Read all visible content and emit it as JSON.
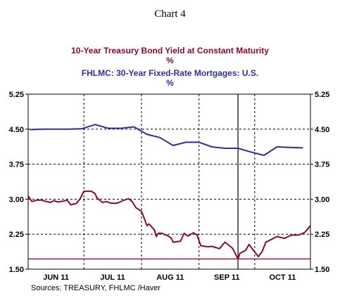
{
  "chart_data": {
    "type": "line",
    "title": "Chart 4",
    "series": [
      {
        "name": "10-Year Treasury Bond Yield at Constant Maturity",
        "unit": "%",
        "color": "#8b0a2a",
        "x": [
          "2011-06-01",
          "2011-06-03",
          "2011-06-06",
          "2011-06-08",
          "2011-06-10",
          "2011-06-13",
          "2011-06-15",
          "2011-06-17",
          "2011-06-20",
          "2011-06-22",
          "2011-06-24",
          "2011-06-27",
          "2011-06-29",
          "2011-07-01",
          "2011-07-05",
          "2011-07-07",
          "2011-07-08",
          "2011-07-11",
          "2011-07-13",
          "2011-07-15",
          "2011-07-18",
          "2011-07-20",
          "2011-07-22",
          "2011-07-25",
          "2011-07-27",
          "2011-07-29",
          "2011-08-01",
          "2011-08-02",
          "2011-08-04",
          "2011-08-05",
          "2011-08-08",
          "2011-08-09",
          "2011-08-10",
          "2011-08-12",
          "2011-08-15",
          "2011-08-17",
          "2011-08-18",
          "2011-08-22",
          "2011-08-24",
          "2011-08-26",
          "2011-08-29",
          "2011-08-31",
          "2011-09-02",
          "2011-09-06",
          "2011-09-08",
          "2011-09-12",
          "2011-09-15",
          "2011-09-19",
          "2011-09-22",
          "2011-09-23",
          "2011-09-26",
          "2011-09-28",
          "2011-09-30",
          "2011-10-03",
          "2011-10-05",
          "2011-10-07",
          "2011-10-11",
          "2011-10-13",
          "2011-10-17",
          "2011-10-19",
          "2011-10-21",
          "2011-10-24",
          "2011-10-26",
          "2011-10-28",
          "2011-10-31"
        ],
        "values": [
          3.07,
          2.95,
          2.98,
          2.98,
          2.96,
          2.93,
          2.97,
          2.94,
          2.96,
          2.98,
          2.88,
          2.91,
          3.01,
          3.17,
          3.17,
          3.12,
          3.03,
          2.93,
          2.95,
          2.92,
          2.91,
          2.93,
          2.97,
          3.01,
          2.95,
          2.82,
          2.74,
          2.64,
          2.43,
          2.47,
          2.34,
          2.2,
          2.27,
          2.27,
          2.22,
          2.17,
          2.08,
          2.1,
          2.27,
          2.21,
          2.28,
          2.23,
          2.0,
          1.98,
          1.99,
          1.94,
          2.08,
          1.95,
          1.72,
          1.84,
          1.9,
          2.03,
          1.92,
          1.77,
          1.88,
          2.08,
          2.16,
          2.2,
          2.16,
          2.2,
          2.23,
          2.23,
          2.25,
          2.29,
          2.43
        ]
      },
      {
        "name": "FHLMC: 30-Year Fixed-Rate Mortgages: U.S.",
        "unit": "%",
        "color": "#2e2ea0",
        "x": [
          "2011-06-02",
          "2011-06-09",
          "2011-06-16",
          "2011-06-23",
          "2011-06-30",
          "2011-07-07",
          "2011-07-14",
          "2011-07-21",
          "2011-07-28",
          "2011-08-04",
          "2011-08-11",
          "2011-08-18",
          "2011-08-25",
          "2011-09-01",
          "2011-09-08",
          "2011-09-15",
          "2011-09-22",
          "2011-09-29",
          "2011-10-06",
          "2011-10-13",
          "2011-10-20",
          "2011-10-27"
        ],
        "values": [
          4.49,
          4.5,
          4.5,
          4.5,
          4.51,
          4.6,
          4.52,
          4.52,
          4.55,
          4.39,
          4.32,
          4.15,
          4.22,
          4.22,
          4.12,
          4.09,
          4.09,
          4.01,
          3.94,
          4.12,
          4.11,
          4.1
        ]
      }
    ],
    "x_tick_labels": [
      "JUN 11",
      "JUL 11",
      "AUG 11",
      "SEP 11",
      "OCT 11"
    ],
    "x_range": [
      "2011-06-01",
      "2011-10-31"
    ],
    "y_ticks": [
      1.5,
      2.25,
      3.0,
      3.75,
      4.5,
      5.25
    ],
    "y_tick_labels": [
      "1.50",
      "2.25",
      "3.00",
      "3.75",
      "4.50",
      "5.25"
    ],
    "ylim": [
      1.5,
      5.25
    ],
    "reference_line": 1.72,
    "marker_line_x": "2011-09-22",
    "grid": "dashed vertical at month starts, dashed horizontal at y ticks",
    "source": "Sources:  TREASURY, FHLMC /Haver"
  }
}
